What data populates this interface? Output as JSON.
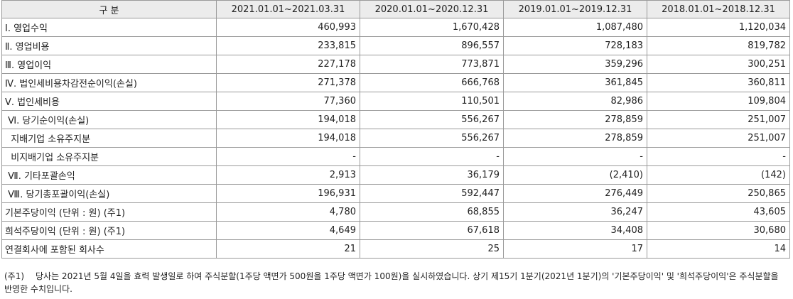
{
  "table": {
    "headers": [
      "구 분",
      "2021.01.01~2021.03.31",
      "2020.01.01~2020.12.31",
      "2019.01.01~2019.12.31",
      "2018.01.01~2018.12.31"
    ],
    "rows": [
      {
        "label": "Ⅰ. 영업수익",
        "values": [
          "460,993",
          "1,670,428",
          "1,087,480",
          "1,120,034"
        ]
      },
      {
        "label": "Ⅱ. 영업비용",
        "values": [
          "233,815",
          "896,557",
          "728,183",
          "819,782"
        ]
      },
      {
        "label": "Ⅲ. 영업이익",
        "values": [
          "227,178",
          "773,871",
          "359,296",
          "300,251"
        ]
      },
      {
        "label": "Ⅳ. 법인세비용차감전순이익(손실)",
        "values": [
          "271,378",
          "666,768",
          "361,845",
          "360,811"
        ]
      },
      {
        "label": "Ⅴ. 법인세비용",
        "values": [
          "77,360",
          "110,501",
          "82,986",
          "109,804"
        ]
      },
      {
        "label": " Ⅵ. 당기순이익(손실)",
        "values": [
          "194,018",
          "556,267",
          "278,859",
          "251,007"
        ]
      },
      {
        "label": "  지배기업 소유주지분",
        "values": [
          "194,018",
          "556,267",
          "278,859",
          "251,007"
        ]
      },
      {
        "label": "  비지배기업 소유주지분",
        "values": [
          "-",
          "-",
          "-",
          "-"
        ]
      },
      {
        "label": " Ⅶ. 기타포괄손익",
        "values": [
          "2,913",
          "36,179",
          "(2,410)",
          "(142)"
        ]
      },
      {
        "label": " Ⅷ. 당기총포괄이익(손실)",
        "values": [
          "196,931",
          "592,447",
          "276,449",
          "250,865"
        ]
      },
      {
        "label": "기본주당이익 (단위 : 원) (주1)",
        "values": [
          "4,780",
          "68,855",
          "36,247",
          "43,605"
        ]
      },
      {
        "label": "희석주당이익 (단위 : 원) (주1)",
        "values": [
          "4,649",
          "67,618",
          "34,408",
          "30,680"
        ]
      },
      {
        "label": "연결회사에 포함된 회사수",
        "values": [
          "21",
          "25",
          "17",
          "14"
        ]
      }
    ]
  },
  "footnote": {
    "tag": "(주1)",
    "text": "당사는 2021년 5월 4일을 효력 발생일로 하여 주식분할(1주당 액면가 500원을 1주당 액면가 100원)을 실시하였습니다. 상기 제15기 1분기(2021년 1분기)의 '기본주당이익' 및 '희석주당이익'은 주식분할을 반영한 수치입니다."
  }
}
